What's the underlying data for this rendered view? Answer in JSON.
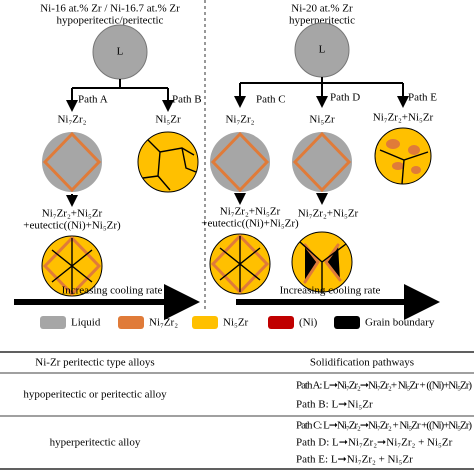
{
  "left": {
    "header": [
      "Ni-16 at.% Zr / Ni-16.7 at.% Zr",
      "hypoperitectic/peritectic"
    ],
    "start": "L",
    "paths": [
      "Path A",
      "Path B"
    ],
    "phases": [
      "Ni₇Zr₂",
      "Ni₅Zr"
    ],
    "final": [
      "Ni₇Zr₂+Ni₅Zr",
      "+eutectic((Ni)+Ni₅Zr)"
    ],
    "arrow": "Increasing cooling rate"
  },
  "right": {
    "header": [
      "Ni-20 at.% Zr",
      "hyperperitectic"
    ],
    "start": "L",
    "paths": [
      "Path C",
      "Path D",
      "Path E"
    ],
    "phases": [
      "Ni₇Zr₂",
      "Ni₅Zr",
      "Ni₇Zr₂+Ni₅Zr"
    ],
    "final_c": [
      "Ni₇Zr₂+Ni₅Zr",
      "+eutectic((Ni)+Ni₅Zr)"
    ],
    "final_d": "Ni₇Zr₂+Ni₅Zr",
    "arrow": "Increasing cooling rate"
  },
  "legend": [
    "Liquid",
    "Ni₇Zr₂",
    "Ni₅Zr",
    "(Ni)",
    "Grain boundary"
  ],
  "table": {
    "header": [
      "Ni-Zr peritectic type alloys",
      "Solidification pathways"
    ],
    "rows": [
      {
        "alloy": "hypoperitectic or peritectic alloy",
        "pathways": [
          "Path A: L➞Ni₇Zr₂➞Ni₇Zr₂+ Ni₅Zr + ((Ni)+Ni₅Zr)",
          "Path B: L➞Ni₅Zr"
        ]
      },
      {
        "alloy": "hyperperitectic alloy",
        "pathways": [
          "Path C: L➞Ni₇Zr₂➞Ni₇Zr₂ + Ni₅Zr +((Ni)+Ni₅Zr)",
          "Path D: L➞Ni₇Zr₂➞Ni₇Zr₂ + Ni₅Zr",
          "Path E: L➞Ni₇Zr₂ + Ni₅Zr"
        ]
      }
    ]
  }
}
